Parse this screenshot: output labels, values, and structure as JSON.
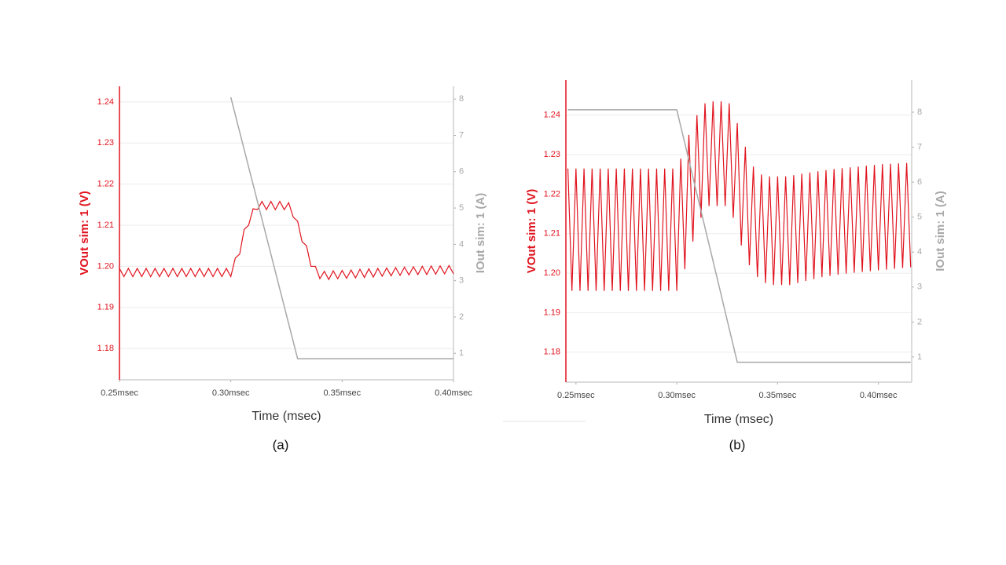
{
  "chart_data": [
    {
      "type": "line",
      "ylabel": "VOut sim: 1 (V)",
      "y2label": "IOut sim: 1 (A)",
      "xlabel": "Time (msec)",
      "caption": "(a)",
      "xlim": [
        0.25,
        0.4
      ],
      "xticks": [
        {
          "value": 0.25,
          "label": "0.25msec"
        },
        {
          "value": 0.3,
          "label": "0.30msec"
        },
        {
          "value": 0.35,
          "label": "0.35msec"
        },
        {
          "value": 0.4,
          "label": "0.40msec"
        }
      ],
      "ylim": [
        1.1724,
        1.2438
      ],
      "yticks": [
        1.18,
        1.19,
        {
          "value": 1.2,
          "label": "1.20"
        },
        1.21,
        1.22,
        1.23,
        1.24
      ],
      "y2lim": [
        0.27,
        8.35
      ],
      "y2ticks": [
        1,
        2,
        3,
        4,
        5,
        6,
        7,
        8
      ],
      "grid": true,
      "x": [
        0.25,
        0.252,
        0.254,
        0.256,
        0.258,
        0.26,
        0.262,
        0.264,
        0.266,
        0.268,
        0.27,
        0.272,
        0.274,
        0.276,
        0.278,
        0.28,
        0.282,
        0.284,
        0.286,
        0.288,
        0.29,
        0.292,
        0.294,
        0.296,
        0.298,
        0.3,
        0.302,
        0.304,
        0.306,
        0.308,
        0.31,
        0.312,
        0.314,
        0.316,
        0.318,
        0.32,
        0.322,
        0.324,
        0.326,
        0.328,
        0.33,
        0.332,
        0.334,
        0.336,
        0.338,
        0.34,
        0.342,
        0.344,
        0.346,
        0.348,
        0.35,
        0.352,
        0.354,
        0.356,
        0.358,
        0.36,
        0.362,
        0.364,
        0.366,
        0.368,
        0.37,
        0.372,
        0.374,
        0.376,
        0.378,
        0.38,
        0.382,
        0.384,
        0.386,
        0.388,
        0.39,
        0.392,
        0.394,
        0.396,
        0.398,
        0.4
      ],
      "series": [
        {
          "color": "#e0141e",
          "values": [
            1.1995,
            1.1975,
            1.1995,
            1.1975,
            1.1995,
            1.1975,
            1.1995,
            1.1975,
            1.1995,
            1.1975,
            1.1995,
            1.1975,
            1.1995,
            1.1975,
            1.1995,
            1.1975,
            1.1995,
            1.1975,
            1.1995,
            1.1975,
            1.1995,
            1.1975,
            1.1995,
            1.1975,
            1.1995,
            1.1975,
            1.202,
            1.203,
            1.209,
            1.21,
            1.214,
            1.2138,
            1.2158,
            1.2138,
            1.2158,
            1.2138,
            1.2158,
            1.2138,
            1.2155,
            1.212,
            1.211,
            1.206,
            1.205,
            1.2,
            1.2,
            1.197,
            1.1988,
            1.1968,
            1.1989,
            1.197,
            1.199,
            1.1971,
            1.1991,
            1.1972,
            1.1993,
            1.1973,
            1.1994,
            1.1974,
            1.1995,
            1.1976,
            1.1996,
            1.1977,
            1.1997,
            1.1978,
            1.1998,
            1.1979,
            1.1999,
            1.198,
            1.2,
            1.198,
            1.2001,
            1.1981,
            1.2001,
            1.1982,
            1.2002,
            1.1982
          ]
        },
        {
          "color": "#a8a8a8",
          "axis": "y2",
          "values": [
            null,
            null,
            null,
            null,
            null,
            null,
            null,
            null,
            null,
            null,
            null,
            null,
            null,
            null,
            null,
            null,
            null,
            null,
            null,
            null,
            null,
            null,
            null,
            null,
            null,
            8.05,
            7.57,
            7.09,
            6.61,
            6.13,
            5.65,
            5.17,
            4.69,
            4.21,
            3.73,
            3.25,
            2.77,
            2.29,
            1.81,
            1.33,
            0.85,
            0.85,
            0.85,
            0.85,
            0.85,
            0.85,
            0.85,
            0.85,
            0.85,
            0.85,
            0.85,
            0.85,
            0.85,
            0.85,
            0.85,
            0.85,
            0.85,
            0.85,
            0.85,
            0.85,
            0.85,
            0.85,
            0.85,
            0.85,
            0.85,
            0.85,
            0.85,
            0.85,
            0.85,
            0.85,
            0.85,
            0.85,
            0.85,
            0.85,
            0.85,
            0.85
          ]
        }
      ]
    },
    {
      "type": "line",
      "ylabel": "VOut sim: 1 (V)",
      "y2label": "IOut sim: 1 (A)",
      "xlabel": "Time (msec)",
      "caption": "(b)",
      "xlim": [
        0.245,
        0.4165
      ],
      "xticks": [
        {
          "value": 0.25,
          "label": "0.25msec"
        },
        {
          "value": 0.3,
          "label": "0.30msec"
        },
        {
          "value": 0.35,
          "label": "0.35msec"
        },
        {
          "value": 0.4,
          "label": "0.40msec"
        }
      ],
      "ylim": [
        1.1724,
        1.2489
      ],
      "yticks": [
        1.18,
        1.19,
        {
          "value": 1.2,
          "label": "1.20"
        },
        1.21,
        1.22,
        1.23,
        1.24
      ],
      "y2lim": [
        0.28,
        8.92
      ],
      "y2ticks": [
        1,
        2,
        3,
        4,
        5,
        6,
        7,
        8
      ],
      "grid": true,
      "x": [
        0.246,
        0.248,
        0.25,
        0.252,
        0.254,
        0.256,
        0.258,
        0.26,
        0.262,
        0.264,
        0.266,
        0.268,
        0.27,
        0.272,
        0.274,
        0.276,
        0.278,
        0.28,
        0.282,
        0.284,
        0.286,
        0.288,
        0.29,
        0.292,
        0.294,
        0.296,
        0.298,
        0.3,
        0.302,
        0.304,
        0.306,
        0.308,
        0.31,
        0.312,
        0.314,
        0.316,
        0.318,
        0.32,
        0.322,
        0.324,
        0.326,
        0.328,
        0.33,
        0.332,
        0.334,
        0.336,
        0.338,
        0.34,
        0.342,
        0.344,
        0.346,
        0.348,
        0.35,
        0.352,
        0.354,
        0.356,
        0.358,
        0.36,
        0.362,
        0.364,
        0.366,
        0.368,
        0.37,
        0.372,
        0.374,
        0.376,
        0.378,
        0.38,
        0.382,
        0.384,
        0.386,
        0.388,
        0.39,
        0.392,
        0.394,
        0.396,
        0.398,
        0.4,
        0.402,
        0.404,
        0.406,
        0.408,
        0.41,
        0.412,
        0.414,
        0.416
      ],
      "series": [
        {
          "color": "#e0141e",
          "values": [
            1.2265,
            1.1955,
            1.2265,
            1.1955,
            1.2265,
            1.1955,
            1.2265,
            1.1955,
            1.2265,
            1.1955,
            1.2265,
            1.1955,
            1.2265,
            1.1955,
            1.2265,
            1.1955,
            1.2265,
            1.1955,
            1.2265,
            1.1955,
            1.2265,
            1.1955,
            1.2265,
            1.1955,
            1.2265,
            1.1955,
            1.2265,
            1.1955,
            1.229,
            1.201,
            1.235,
            1.208,
            1.24,
            1.214,
            1.243,
            1.217,
            1.2435,
            1.217,
            1.2435,
            1.217,
            1.243,
            1.214,
            1.238,
            1.207,
            1.232,
            1.202,
            1.227,
            1.199,
            1.225,
            1.1975,
            1.2245,
            1.197,
            1.2245,
            1.197,
            1.2245,
            1.197,
            1.2248,
            1.1975,
            1.2252,
            1.198,
            1.2255,
            1.1985,
            1.2258,
            1.199,
            1.2261,
            1.1993,
            1.2264,
            1.1996,
            1.2266,
            1.1999,
            1.2268,
            1.2001,
            1.227,
            1.2003,
            1.2272,
            1.2005,
            1.2274,
            1.2007,
            1.2276,
            1.2009,
            1.2277,
            1.2011,
            1.2278,
            1.2013,
            1.2279,
            1.2015
          ]
        },
        {
          "color": "#a8a8a8",
          "axis": "y2",
          "values": [
            8.07,
            8.07,
            8.07,
            8.07,
            8.07,
            8.07,
            8.07,
            8.07,
            8.07,
            8.07,
            8.07,
            8.07,
            8.07,
            8.07,
            8.07,
            8.07,
            8.07,
            8.07,
            8.07,
            8.07,
            8.07,
            8.07,
            8.07,
            8.07,
            8.07,
            8.07,
            8.07,
            8.07,
            7.59,
            7.11,
            6.63,
            6.14,
            5.66,
            5.18,
            4.7,
            4.22,
            3.74,
            3.26,
            2.78,
            2.29,
            1.81,
            1.33,
            0.85,
            0.85,
            0.85,
            0.85,
            0.85,
            0.85,
            0.85,
            0.85,
            0.85,
            0.85,
            0.85,
            0.85,
            0.85,
            0.85,
            0.85,
            0.85,
            0.85,
            0.85,
            0.85,
            0.85,
            0.85,
            0.85,
            0.85,
            0.85,
            0.85,
            0.85,
            0.85,
            0.85,
            0.85,
            0.85,
            0.85,
            0.85,
            0.85,
            0.85,
            0.85,
            0.85,
            0.85,
            0.85,
            0.85,
            0.85,
            0.85,
            0.85,
            0.85,
            0.85
          ]
        }
      ]
    }
  ]
}
